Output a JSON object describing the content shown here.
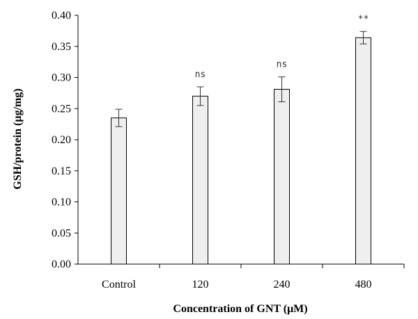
{
  "chart_data": {
    "type": "bar",
    "title": "",
    "xlabel": "Concentration of GNT (μM)",
    "ylabel": "GSH/protein (µg/mg)",
    "categories": [
      "Control",
      "120",
      "240",
      "480"
    ],
    "values": [
      0.235,
      0.27,
      0.281,
      0.364
    ],
    "errors": [
      0.014,
      0.015,
      0.02,
      0.01
    ],
    "significance": [
      "",
      "ns",
      "ns",
      "**"
    ],
    "ylim": [
      0,
      0.4
    ],
    "yticks": [
      "0.00",
      "0.05",
      "0.10",
      "0.15",
      "0.20",
      "0.25",
      "0.30",
      "0.35",
      "0.40"
    ],
    "grid": false,
    "legend": "none",
    "bar_color": "#efefef",
    "bar_stroke": "#000000"
  }
}
